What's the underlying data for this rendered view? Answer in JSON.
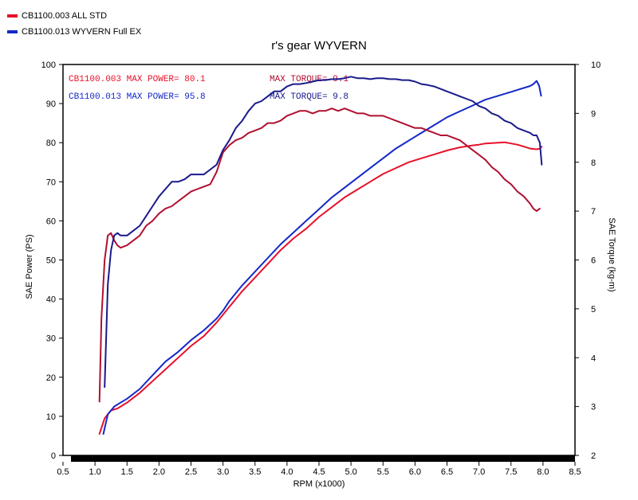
{
  "chart_data": {
    "type": "line",
    "title": "r's gear WYVERN",
    "xlabel": "RPM (x1000)",
    "ylabel_left": "SAE Power (PS)",
    "ylabel_right": "SAE Torque (kg-m)",
    "xlim": [
      0.5,
      8.5
    ],
    "ylim_left": [
      0,
      100
    ],
    "ylim_right": [
      2,
      10
    ],
    "x_ticks": [
      "0.5",
      "1.0",
      "1.5",
      "2.0",
      "2.5",
      "3.0",
      "3.5",
      "4.0",
      "4.5",
      "5.0",
      "5.5",
      "6.0",
      "6.5",
      "7.0",
      "7.5",
      "8.0",
      "8.5"
    ],
    "y_ticks_left": [
      "0",
      "10",
      "20",
      "30",
      "40",
      "50",
      "60",
      "70",
      "80",
      "90",
      "100"
    ],
    "y_ticks_right": [
      "2",
      "3",
      "4",
      "5",
      "6",
      "7",
      "8",
      "9",
      "10"
    ],
    "grid": false,
    "legend": {
      "placement": "top-left",
      "entries": [
        {
          "label": "CB1100.003   ALL STD",
          "color": "#e8102a"
        },
        {
          "label": "CB1100.013   WYVERN Full EX",
          "color": "#1428c8"
        }
      ]
    },
    "annotations": {
      "std_power": "CB1100.003  MAX POWER= 80.1",
      "std_torque": "MAX TORQUE= 9.1",
      "wyv_power": "CB1100.013  MAX POWER= 95.8",
      "wyv_torque": "MAX TORQUE= 9.8"
    },
    "colors": {
      "std_power": "#e8102a",
      "std_torque": "#b01030",
      "wyv_power": "#1428c8",
      "wyv_torque": "#1a1a8c"
    },
    "series": [
      {
        "name": "CB1100.003 ALL STD",
        "measure": "power",
        "axis": "left",
        "color": "#e8102a",
        "x": [
          1.07,
          1.15,
          1.25,
          1.35,
          1.5,
          1.7,
          1.9,
          2.1,
          2.3,
          2.5,
          2.7,
          2.9,
          3.0,
          3.1,
          3.3,
          3.5,
          3.7,
          3.9,
          4.1,
          4.3,
          4.5,
          4.7,
          4.9,
          5.1,
          5.3,
          5.5,
          5.7,
          5.9,
          6.1,
          6.3,
          6.5,
          6.7,
          6.9,
          7.0,
          7.1,
          7.2,
          7.3,
          7.4,
          7.5,
          7.6,
          7.7,
          7.8,
          7.9,
          7.95,
          7.98
        ],
        "y": [
          5.5,
          9.5,
          11.5,
          12.0,
          13.5,
          16.0,
          19.0,
          22.0,
          25.0,
          28.0,
          30.5,
          34.0,
          36.0,
          38.0,
          42.0,
          45.5,
          49.0,
          52.5,
          55.5,
          58.0,
          61.0,
          63.5,
          66.0,
          68.0,
          70.0,
          72.0,
          73.5,
          75.0,
          76.0,
          77.0,
          78.0,
          78.8,
          79.3,
          79.5,
          79.8,
          79.9,
          80.0,
          80.1,
          79.8,
          79.5,
          79.0,
          78.5,
          78.3,
          78.5,
          79.0
        ]
      },
      {
        "name": "CB1100.013 WYVERN Full EX",
        "measure": "power",
        "axis": "left",
        "color": "#1428c8",
        "x": [
          1.13,
          1.2,
          1.3,
          1.4,
          1.5,
          1.7,
          1.9,
          2.1,
          2.3,
          2.5,
          2.7,
          2.9,
          3.0,
          3.1,
          3.3,
          3.5,
          3.7,
          3.9,
          4.1,
          4.3,
          4.5,
          4.7,
          4.9,
          5.1,
          5.3,
          5.5,
          5.7,
          5.9,
          6.1,
          6.3,
          6.5,
          6.7,
          6.9,
          7.1,
          7.3,
          7.5,
          7.6,
          7.7,
          7.8,
          7.85,
          7.9,
          7.94,
          7.97
        ],
        "y": [
          5.5,
          10.5,
          12.5,
          13.5,
          14.5,
          17.0,
          20.5,
          24.0,
          26.5,
          29.5,
          32.0,
          35.0,
          37.0,
          39.5,
          43.5,
          47.0,
          50.5,
          54.0,
          57.0,
          60.0,
          63.0,
          66.0,
          68.5,
          71.0,
          73.5,
          76.0,
          78.5,
          80.5,
          82.5,
          84.5,
          86.5,
          88.0,
          89.5,
          91.0,
          92.0,
          93.0,
          93.5,
          94.0,
          94.5,
          95.0,
          95.8,
          94.5,
          92.0
        ]
      },
      {
        "name": "CB1100.003 ALL STD",
        "measure": "torque",
        "axis": "right",
        "color": "#b01030",
        "x": [
          1.07,
          1.1,
          1.15,
          1.2,
          1.25,
          1.3,
          1.35,
          1.4,
          1.5,
          1.6,
          1.7,
          1.8,
          1.9,
          2.0,
          2.1,
          2.2,
          2.3,
          2.4,
          2.5,
          2.6,
          2.7,
          2.8,
          2.9,
          3.0,
          3.1,
          3.2,
          3.3,
          3.4,
          3.5,
          3.6,
          3.7,
          3.8,
          3.9,
          4.0,
          4.1,
          4.2,
          4.3,
          4.4,
          4.5,
          4.6,
          4.7,
          4.8,
          4.9,
          5.0,
          5.1,
          5.2,
          5.3,
          5.4,
          5.5,
          5.6,
          5.7,
          5.8,
          5.9,
          6.0,
          6.1,
          6.2,
          6.3,
          6.4,
          6.5,
          6.6,
          6.7,
          6.8,
          6.9,
          7.0,
          7.1,
          7.2,
          7.3,
          7.4,
          7.5,
          7.6,
          7.7,
          7.8,
          7.85,
          7.9,
          7.95
        ],
        "y": [
          3.1,
          4.8,
          6.0,
          6.5,
          6.55,
          6.4,
          6.3,
          6.25,
          6.3,
          6.4,
          6.5,
          6.7,
          6.8,
          6.95,
          7.05,
          7.1,
          7.2,
          7.3,
          7.4,
          7.45,
          7.5,
          7.55,
          7.8,
          8.2,
          8.35,
          8.45,
          8.5,
          8.6,
          8.65,
          8.7,
          8.8,
          8.8,
          8.85,
          8.95,
          9.0,
          9.05,
          9.05,
          9.0,
          9.05,
          9.05,
          9.1,
          9.05,
          9.1,
          9.05,
          9.0,
          9.0,
          8.95,
          8.95,
          8.95,
          8.9,
          8.85,
          8.8,
          8.75,
          8.7,
          8.7,
          8.65,
          8.6,
          8.55,
          8.55,
          8.5,
          8.45,
          8.35,
          8.25,
          8.15,
          8.05,
          7.9,
          7.8,
          7.65,
          7.55,
          7.4,
          7.3,
          7.15,
          7.05,
          7.0,
          7.05
        ]
      },
      {
        "name": "CB1100.013 WYVERN Full EX",
        "measure": "torque",
        "axis": "right",
        "color": "#1a1a8c",
        "x": [
          1.15,
          1.2,
          1.25,
          1.3,
          1.35,
          1.4,
          1.5,
          1.6,
          1.7,
          1.8,
          1.9,
          2.0,
          2.1,
          2.2,
          2.3,
          2.4,
          2.5,
          2.6,
          2.7,
          2.8,
          2.9,
          3.0,
          3.1,
          3.2,
          3.3,
          3.4,
          3.5,
          3.6,
          3.7,
          3.8,
          3.9,
          4.0,
          4.1,
          4.2,
          4.3,
          4.4,
          4.5,
          4.6,
          4.7,
          4.8,
          4.9,
          5.0,
          5.1,
          5.2,
          5.3,
          5.4,
          5.5,
          5.6,
          5.7,
          5.8,
          5.9,
          6.0,
          6.1,
          6.2,
          6.3,
          6.4,
          6.5,
          6.6,
          6.7,
          6.8,
          6.9,
          7.0,
          7.1,
          7.2,
          7.3,
          7.4,
          7.5,
          7.6,
          7.7,
          7.8,
          7.85,
          7.9,
          7.95,
          7.98
        ],
        "y": [
          3.4,
          5.5,
          6.2,
          6.5,
          6.55,
          6.5,
          6.5,
          6.6,
          6.7,
          6.9,
          7.1,
          7.3,
          7.45,
          7.6,
          7.6,
          7.65,
          7.75,
          7.75,
          7.75,
          7.85,
          7.95,
          8.25,
          8.45,
          8.7,
          8.85,
          9.05,
          9.2,
          9.25,
          9.35,
          9.45,
          9.45,
          9.55,
          9.6,
          9.6,
          9.62,
          9.65,
          9.68,
          9.68,
          9.7,
          9.7,
          9.72,
          9.75,
          9.72,
          9.72,
          9.7,
          9.72,
          9.72,
          9.7,
          9.7,
          9.68,
          9.68,
          9.65,
          9.6,
          9.58,
          9.55,
          9.5,
          9.45,
          9.4,
          9.35,
          9.3,
          9.25,
          9.15,
          9.1,
          9.0,
          8.95,
          8.85,
          8.8,
          8.7,
          8.65,
          8.6,
          8.55,
          8.55,
          8.4,
          7.95
        ]
      }
    ]
  }
}
